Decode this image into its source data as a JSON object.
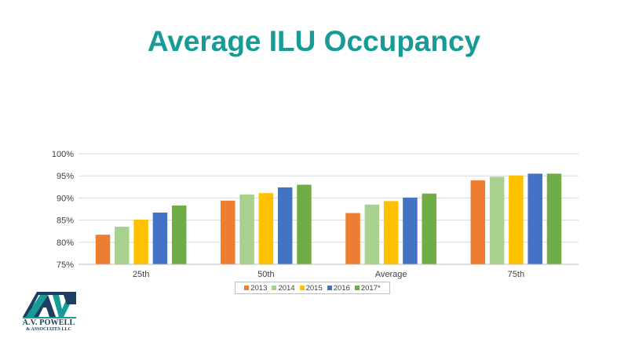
{
  "slide": {
    "title": "Average ILU Occupancy"
  },
  "colors": {
    "title": "#169c97",
    "grid": "#d9d9d9",
    "axis": "#bfbfbf",
    "logo_teal": "#169c97",
    "logo_navy": "#1f3d60"
  },
  "logo": {
    "icon": "avp-monogram-icon",
    "line1": "A.V. POWELL",
    "line2": "& ASSOCIATES LLC"
  },
  "chart_data": {
    "type": "bar",
    "title": "",
    "xlabel": "",
    "ylabel": "",
    "categories": [
      "25th",
      "50th",
      "Average",
      "75th"
    ],
    "ylim": [
      0.75,
      1.0
    ],
    "yticks": [
      {
        "value": 0.75,
        "label": "75%"
      },
      {
        "value": 0.8,
        "label": "80%"
      },
      {
        "value": 0.85,
        "label": "85%"
      },
      {
        "value": 0.9,
        "label": "90%"
      },
      {
        "value": 0.95,
        "label": "95%"
      },
      {
        "value": 1.0,
        "label": "100%"
      }
    ],
    "grid": true,
    "legend_position": "bottom",
    "series": [
      {
        "name": "2013",
        "color": "#ed7d31",
        "values": [
          0.817,
          0.894,
          0.866,
          0.94
        ]
      },
      {
        "name": "2014",
        "color": "#a9d18e",
        "values": [
          0.835,
          0.908,
          0.885,
          0.948
        ]
      },
      {
        "name": "2015",
        "color": "#ffc000",
        "values": [
          0.851,
          0.911,
          0.893,
          0.951
        ]
      },
      {
        "name": "2016",
        "color": "#4472c4",
        "values": [
          0.867,
          0.924,
          0.901,
          0.955
        ]
      },
      {
        "name": "2017*",
        "color": "#70ad47",
        "values": [
          0.883,
          0.93,
          0.91,
          0.955
        ]
      }
    ]
  }
}
